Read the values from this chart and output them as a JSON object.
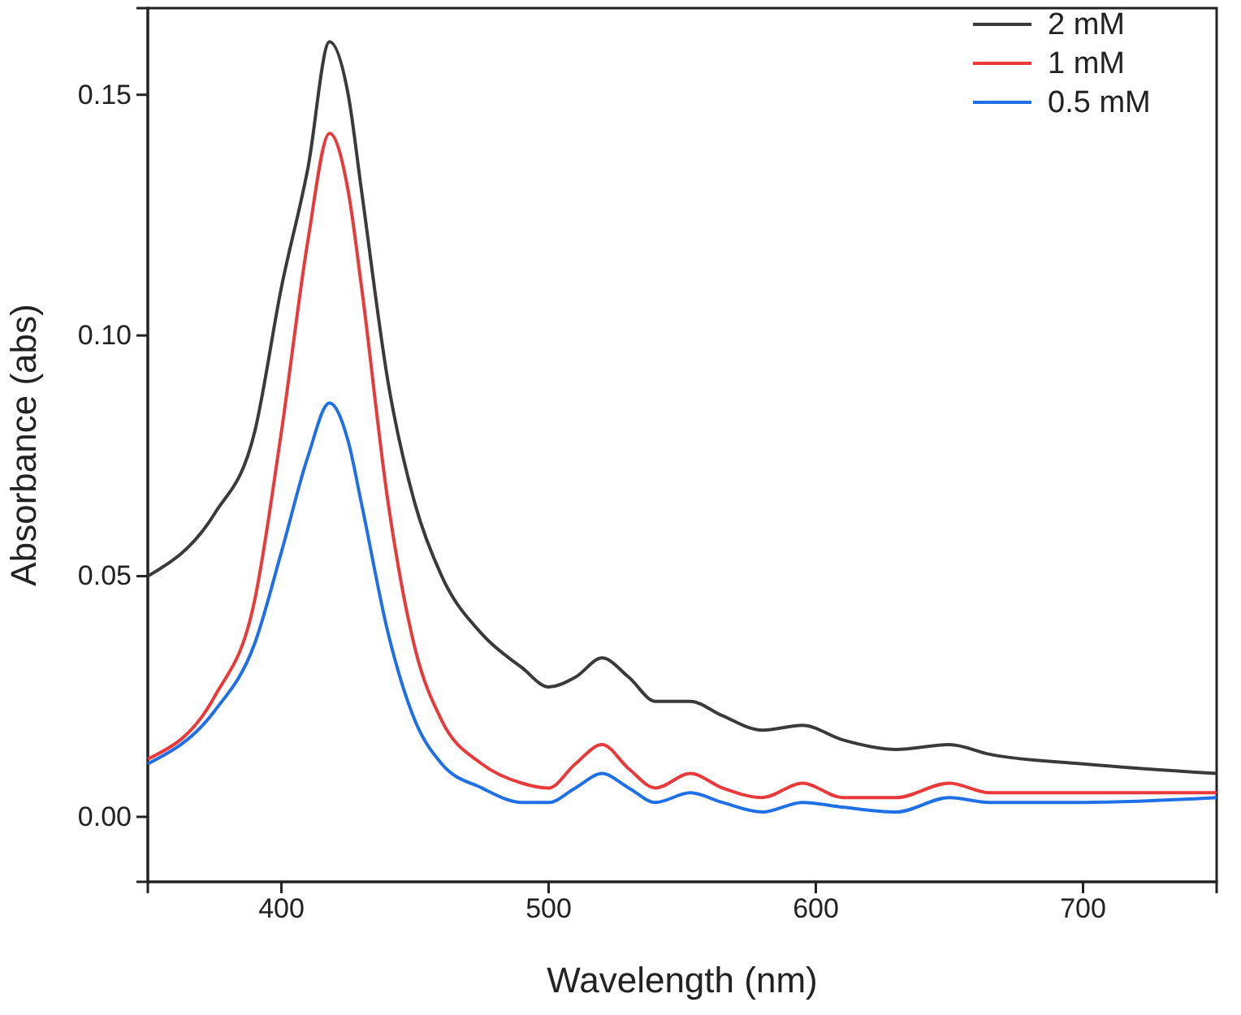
{
  "chart_data": {
    "type": "line",
    "xlabel": "Wavelength (nm)",
    "ylabel": "Absorbance (abs)",
    "xlim": [
      350,
      750
    ],
    "xticks": [
      400,
      500,
      600,
      700
    ],
    "ylim": [
      -0.0135,
      0.168
    ],
    "yticks": [
      {
        "value": 0,
        "label": "0.00"
      },
      {
        "value": 0.05,
        "label": "0.05"
      },
      {
        "value": 0.1,
        "label": "0.10"
      },
      {
        "value": 0.15,
        "label": "0.15"
      }
    ],
    "x": [
      350,
      375,
      390,
      400,
      410,
      418,
      425,
      430,
      440,
      450,
      460,
      475,
      490,
      500,
      510,
      520,
      530,
      540,
      553,
      565,
      580,
      595,
      610,
      630,
      650,
      665,
      700,
      750
    ],
    "legend": "top right",
    "grid": false,
    "line_style": "solid",
    "marker": "none",
    "series": [
      {
        "name": "2 mM",
        "color": "#3a3a3a",
        "values": [
          0.05,
          0.063,
          0.08,
          0.11,
          0.135,
          0.161,
          0.15,
          0.13,
          0.09,
          0.065,
          0.05,
          0.038,
          0.031,
          0.027,
          0.029,
          0.033,
          0.029,
          0.024,
          0.024,
          0.021,
          0.018,
          0.019,
          0.016,
          0.014,
          0.015,
          0.013,
          0.011,
          0.009
        ]
      },
      {
        "name": "1 mM",
        "color": "#e8393b",
        "values": [
          0.012,
          0.025,
          0.045,
          0.08,
          0.12,
          0.142,
          0.13,
          0.11,
          0.065,
          0.035,
          0.02,
          0.011,
          0.007,
          0.006,
          0.011,
          0.015,
          0.01,
          0.006,
          0.009,
          0.006,
          0.004,
          0.007,
          0.004,
          0.004,
          0.007,
          0.005,
          0.005,
          0.005
        ]
      },
      {
        "name": "0.5 mM",
        "color": "#1f6fe5",
        "values": [
          0.011,
          0.022,
          0.036,
          0.055,
          0.075,
          0.086,
          0.078,
          0.065,
          0.038,
          0.02,
          0.011,
          0.006,
          0.003,
          0.003,
          0.006,
          0.009,
          0.006,
          0.003,
          0.005,
          0.003,
          0.001,
          0.003,
          0.002,
          0.001,
          0.004,
          0.003,
          0.003,
          0.004
        ]
      }
    ]
  }
}
